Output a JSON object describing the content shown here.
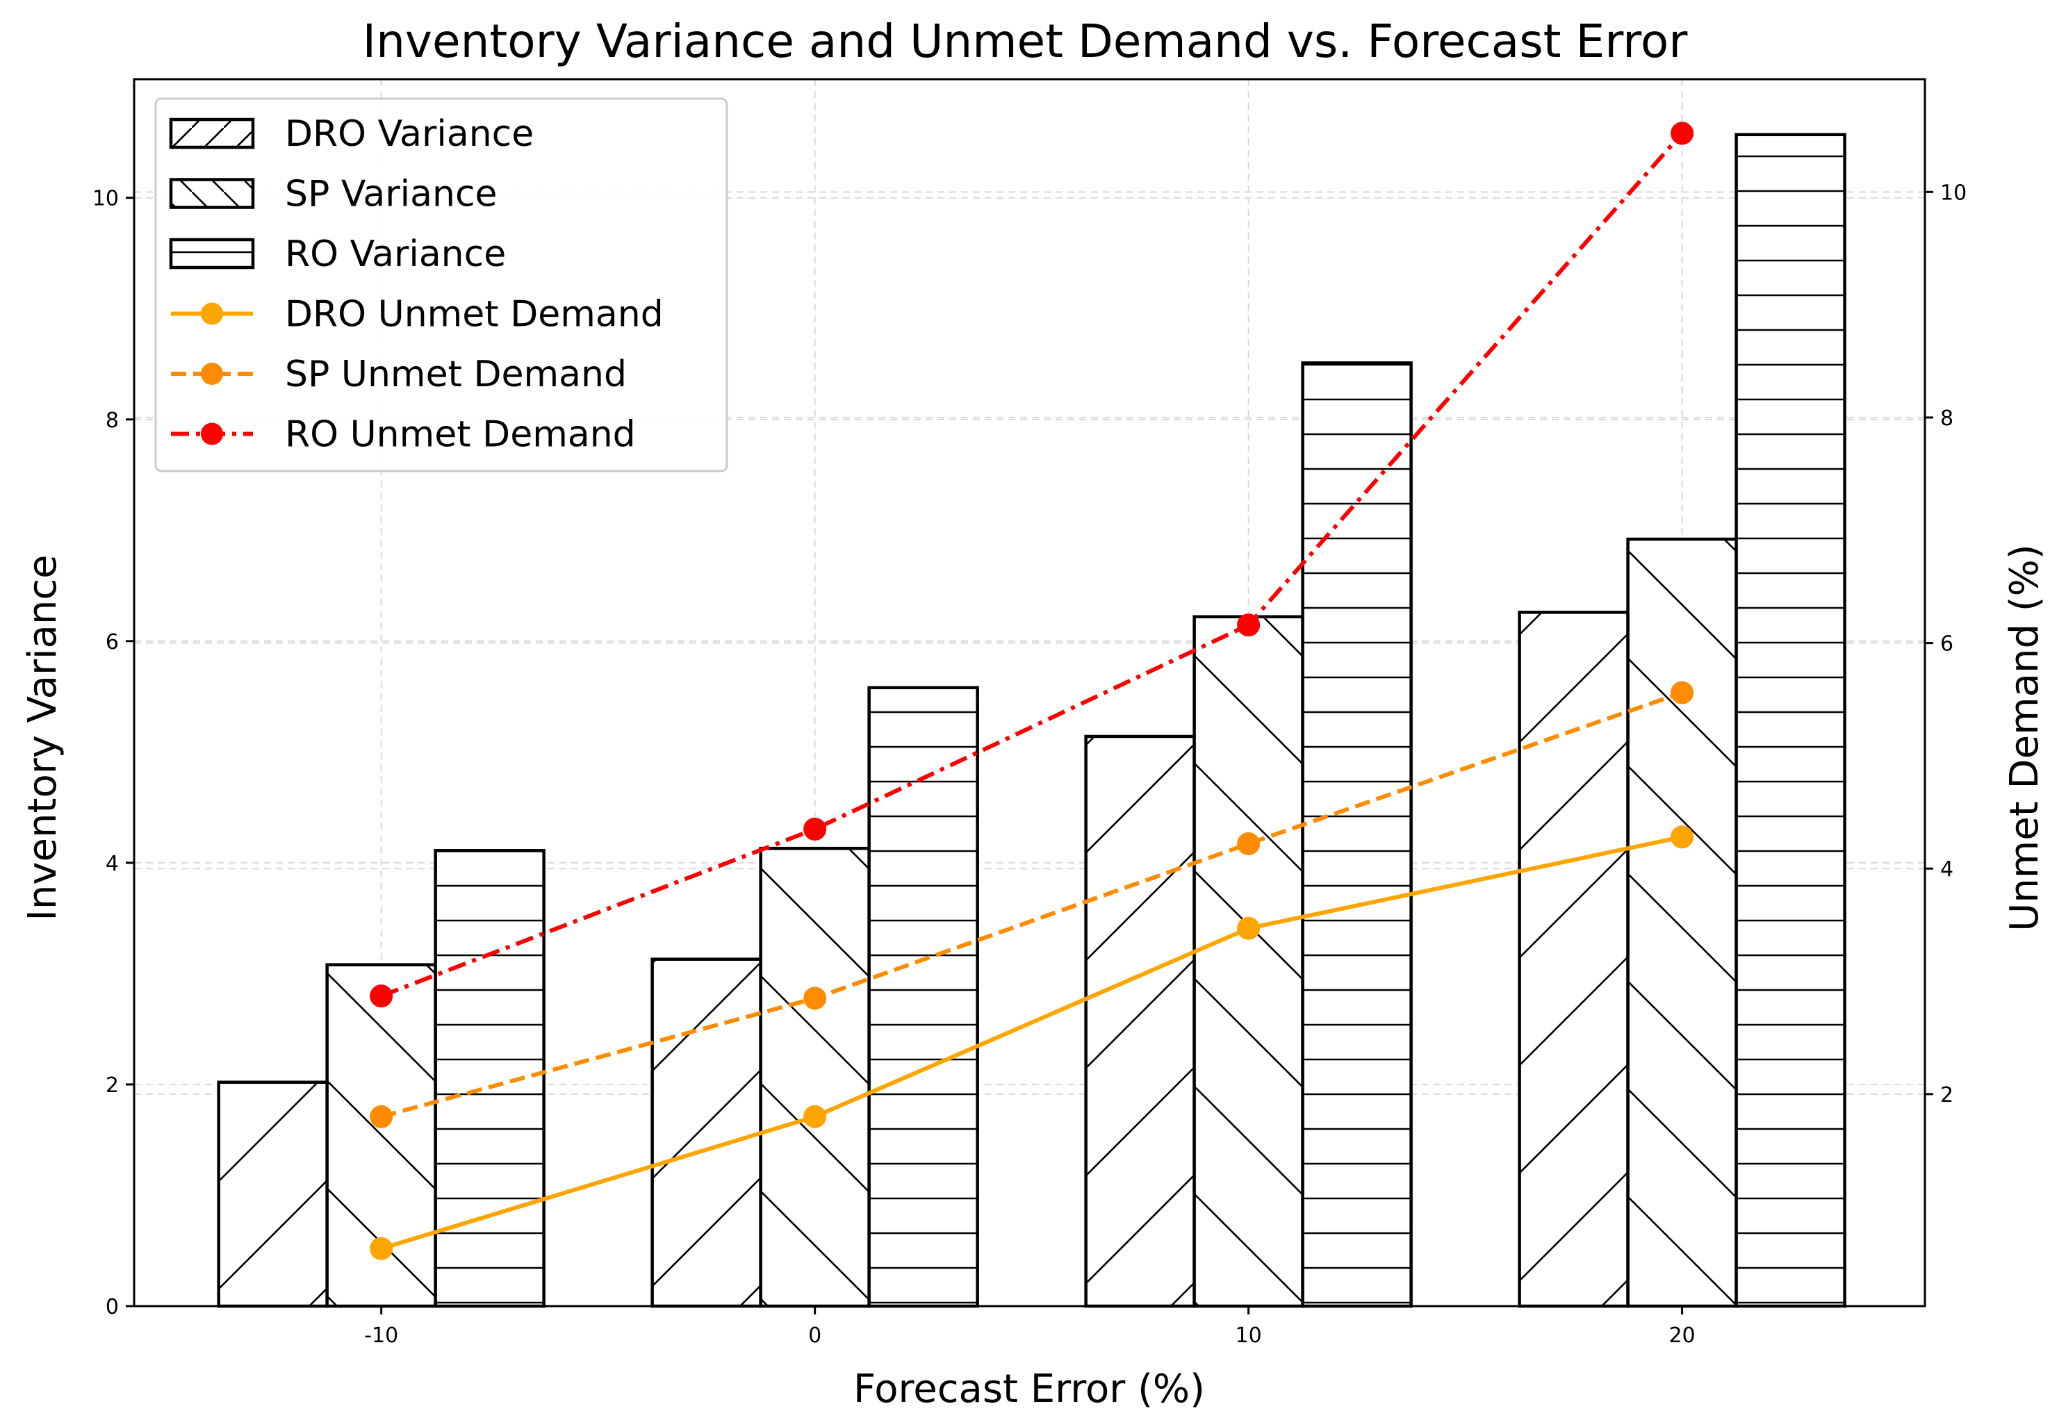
{
  "chart_data": {
    "type": "bar",
    "title": "Inventory Variance and Unmet Demand vs. Forecast Error",
    "xlabel": "Forecast Error (%)",
    "ylabel": "Inventory Variance",
    "y2label": "Unmet Demand (%)",
    "categories": [
      "-10",
      "0",
      "10",
      "20"
    ],
    "x": [
      -10,
      0,
      10,
      20
    ],
    "xlim": [
      -15.7,
      25.6
    ],
    "ylim": [
      0,
      11.07
    ],
    "y2lim": [
      0.12,
      11.0
    ],
    "yticks": [
      0,
      2,
      4,
      6,
      8,
      10
    ],
    "y2ticks": [
      2,
      4,
      6,
      8,
      10
    ],
    "grid": true,
    "legend_position": "upper-left",
    "bar_series": [
      {
        "name": "DRO Variance",
        "hatch": "forward-diagonal",
        "values": [
          2.02,
          3.13,
          5.14,
          6.26
        ]
      },
      {
        "name": "SP Variance",
        "hatch": "back-diagonal",
        "values": [
          3.08,
          4.13,
          6.22,
          6.92
        ]
      },
      {
        "name": "RO Variance",
        "hatch": "horizontal",
        "values": [
          4.11,
          5.58,
          8.51,
          10.57
        ]
      }
    ],
    "line_series": [
      {
        "name": "DRO Unmet Demand",
        "axis": "right",
        "color": "#FFA500",
        "style": "solid",
        "values": [
          0.63,
          1.8,
          3.47,
          4.28
        ]
      },
      {
        "name": "SP Unmet Demand",
        "axis": "right",
        "color": "#FF8C00",
        "style": "dashed",
        "values": [
          1.8,
          2.85,
          4.22,
          5.56
        ]
      },
      {
        "name": "RO Unmet Demand",
        "axis": "right",
        "color": "#FF0000",
        "style": "dash-dot",
        "values": [
          2.87,
          4.35,
          6.16,
          10.52
        ]
      }
    ]
  }
}
